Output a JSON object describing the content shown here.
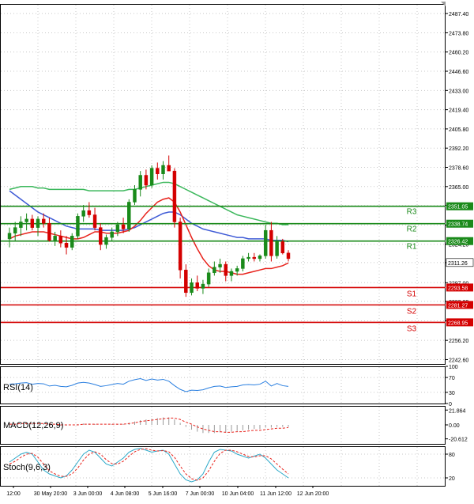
{
  "chart_data": {
    "type": "candlestick",
    "instrument_note": "",
    "main": {
      "ylim": [
        2239.5,
        2494.2
      ],
      "y_ticks": [
        2242.6,
        2256.2,
        2270.0,
        2283.8,
        2297.0,
        2311.2,
        2324.2,
        2337.8,
        2351.6,
        2365.0,
        2378.6,
        2392.2,
        2405.8,
        2419.4,
        2433.0,
        2446.6,
        2460.2,
        2473.8,
        2487.4
      ],
      "candles": [
        {
          "o": 2328,
          "h": 2336,
          "l": 2322,
          "c": 2332
        },
        {
          "o": 2332,
          "h": 2340,
          "l": 2326,
          "c": 2336
        },
        {
          "o": 2336,
          "h": 2344,
          "l": 2330,
          "c": 2340
        },
        {
          "o": 2340,
          "h": 2346,
          "l": 2334,
          "c": 2342
        },
        {
          "o": 2342,
          "h": 2345,
          "l": 2334,
          "c": 2336
        },
        {
          "o": 2336,
          "h": 2344,
          "l": 2330,
          "c": 2342
        },
        {
          "o": 2342,
          "h": 2346,
          "l": 2336,
          "c": 2339
        },
        {
          "o": 2339,
          "h": 2343,
          "l": 2326,
          "c": 2327
        },
        {
          "o": 2327,
          "h": 2333,
          "l": 2323,
          "c": 2330
        },
        {
          "o": 2330,
          "h": 2334,
          "l": 2322,
          "c": 2325
        },
        {
          "o": 2325,
          "h": 2330,
          "l": 2317,
          "c": 2322
        },
        {
          "o": 2322,
          "h": 2332,
          "l": 2320,
          "c": 2330
        },
        {
          "o": 2330,
          "h": 2346,
          "l": 2328,
          "c": 2344
        },
        {
          "o": 2344,
          "h": 2352,
          "l": 2340,
          "c": 2348
        },
        {
          "o": 2348,
          "h": 2354,
          "l": 2343,
          "c": 2345
        },
        {
          "o": 2345,
          "h": 2350,
          "l": 2334,
          "c": 2336
        },
        {
          "o": 2336,
          "h": 2339,
          "l": 2320,
          "c": 2324
        },
        {
          "o": 2324,
          "h": 2331,
          "l": 2321,
          "c": 2329
        },
        {
          "o": 2329,
          "h": 2336,
          "l": 2326,
          "c": 2333
        },
        {
          "o": 2333,
          "h": 2340,
          "l": 2330,
          "c": 2338
        },
        {
          "o": 2338,
          "h": 2343,
          "l": 2332,
          "c": 2335
        },
        {
          "o": 2335,
          "h": 2356,
          "l": 2333,
          "c": 2354
        },
        {
          "o": 2354,
          "h": 2366,
          "l": 2352,
          "c": 2363
        },
        {
          "o": 2363,
          "h": 2376,
          "l": 2358,
          "c": 2373
        },
        {
          "o": 2373,
          "h": 2377,
          "l": 2363,
          "c": 2366
        },
        {
          "o": 2366,
          "h": 2380,
          "l": 2364,
          "c": 2378
        },
        {
          "o": 2378,
          "h": 2382,
          "l": 2370,
          "c": 2374
        },
        {
          "o": 2374,
          "h": 2383,
          "l": 2370,
          "c": 2380
        },
        {
          "o": 2380,
          "h": 2387,
          "l": 2376,
          "c": 2376
        },
        {
          "o": 2376,
          "h": 2378,
          "l": 2336,
          "c": 2340
        },
        {
          "o": 2340,
          "h": 2343,
          "l": 2300,
          "c": 2306
        },
        {
          "o": 2306,
          "h": 2310,
          "l": 2287,
          "c": 2290
        },
        {
          "o": 2290,
          "h": 2300,
          "l": 2288,
          "c": 2297
        },
        {
          "o": 2297,
          "h": 2302,
          "l": 2291,
          "c": 2293
        },
        {
          "o": 2293,
          "h": 2299,
          "l": 2289,
          "c": 2296
        },
        {
          "o": 2296,
          "h": 2307,
          "l": 2294,
          "c": 2304
        },
        {
          "o": 2304,
          "h": 2312,
          "l": 2302,
          "c": 2308
        },
        {
          "o": 2308,
          "h": 2314,
          "l": 2304,
          "c": 2310
        },
        {
          "o": 2310,
          "h": 2312,
          "l": 2298,
          "c": 2302
        },
        {
          "o": 2302,
          "h": 2307,
          "l": 2298,
          "c": 2305
        },
        {
          "o": 2305,
          "h": 2309,
          "l": 2302,
          "c": 2307
        },
        {
          "o": 2307,
          "h": 2316,
          "l": 2305,
          "c": 2314
        },
        {
          "o": 2314,
          "h": 2318,
          "l": 2312,
          "c": 2315
        },
        {
          "o": 2315,
          "h": 2318,
          "l": 2312,
          "c": 2314
        },
        {
          "o": 2314,
          "h": 2317,
          "l": 2312,
          "c": 2316
        },
        {
          "o": 2316,
          "h": 2338,
          "l": 2314,
          "c": 2334
        },
        {
          "o": 2334,
          "h": 2340,
          "l": 2312,
          "c": 2316
        },
        {
          "o": 2316,
          "h": 2330,
          "l": 2314,
          "c": 2326
        },
        {
          "o": 2326,
          "h": 2328,
          "l": 2317,
          "c": 2318
        },
        {
          "o": 2318,
          "h": 2320,
          "l": 2312,
          "c": 2314
        }
      ],
      "ma_red": [
        2328,
        2330,
        2331,
        2332,
        2333,
        2333,
        2333,
        2332,
        2331,
        2330,
        2329,
        2328,
        2328,
        2329,
        2331,
        2333,
        2333,
        2332,
        2332,
        2332,
        2333,
        2334,
        2337,
        2341,
        2346,
        2350,
        2354,
        2356,
        2357,
        2354,
        2347,
        2338,
        2329,
        2321,
        2314,
        2309,
        2306,
        2305,
        2305,
        2304,
        2303,
        2303,
        2304,
        2305,
        2306,
        2307,
        2307,
        2308,
        2309,
        2311
      ],
      "ma_blue": [
        2362,
        2359,
        2356,
        2353,
        2350,
        2347,
        2345,
        2343,
        2341,
        2339,
        2337,
        2336,
        2335,
        2335,
        2335,
        2335,
        2334,
        2334,
        2334,
        2334,
        2334,
        2335,
        2336,
        2338,
        2340,
        2342,
        2344,
        2346,
        2347,
        2347,
        2345,
        2342,
        2339,
        2337,
        2335,
        2334,
        2333,
        2332,
        2331,
        2330,
        2329,
        2329,
        2328,
        2328,
        2328,
        2328,
        2327,
        2327,
        2327,
        2326
      ],
      "ma_green": [
        2363,
        2364,
        2365,
        2365,
        2365,
        2364,
        2364,
        2363,
        2363,
        2363,
        2363,
        2363,
        2363,
        2363,
        2362,
        2362,
        2362,
        2362,
        2362,
        2362,
        2362,
        2363,
        2363,
        2364,
        2365,
        2366,
        2367,
        2368,
        2368,
        2367,
        2365,
        2363,
        2361,
        2359,
        2357,
        2355,
        2353,
        2351,
        2349,
        2347,
        2345,
        2344,
        2343,
        2342,
        2341,
        2340,
        2339,
        2339,
        2338,
        2338
      ],
      "levels": [
        {
          "name": "R3",
          "value": 2351.05,
          "label": "2351.05",
          "color": "#1a8a1a"
        },
        {
          "name": "R2",
          "value": 2338.74,
          "label": "2338.74",
          "color": "#1a8a1a"
        },
        {
          "name": "R1",
          "value": 2326.42,
          "label": "2326.42",
          "color": "#1a8a1a"
        },
        {
          "name": "S1",
          "value": 2293.58,
          "label": "2293.58",
          "color": "#d40000"
        },
        {
          "name": "S2",
          "value": 2281.27,
          "label": "2281.27",
          "color": "#d40000"
        },
        {
          "name": "S3",
          "value": 2268.95,
          "label": "2268.95",
          "color": "#d40000"
        }
      ],
      "current_price": {
        "value": 2311.26,
        "label": "2311.26"
      }
    },
    "rsi": {
      "label": "RSI(14)",
      "ylim": [
        0,
        100
      ],
      "ticks": [
        100,
        70,
        30,
        0
      ],
      "values": [
        52,
        53,
        55,
        56,
        52,
        54,
        53,
        47,
        49,
        46,
        45,
        49,
        55,
        57,
        55,
        51,
        46,
        48,
        51,
        54,
        52,
        60,
        64,
        67,
        62,
        66,
        63,
        65,
        60,
        48,
        38,
        32,
        36,
        35,
        37,
        42,
        46,
        47,
        43,
        45,
        46,
        50,
        51,
        50,
        52,
        60,
        47,
        54,
        48,
        46
      ]
    },
    "macd": {
      "label": "MACD(12,26,9)",
      "ylim": [
        -28,
        28
      ],
      "ticks": [
        "21.864",
        "0.00",
        "-20.612"
      ],
      "hist": [
        2,
        2,
        3,
        3,
        2,
        2,
        2,
        1,
        0,
        -1,
        -1,
        0,
        1,
        2,
        2,
        1,
        0,
        0,
        1,
        1,
        1,
        3,
        5,
        7,
        8,
        9,
        10,
        11,
        11,
        8,
        3,
        -3,
        -7,
        -10,
        -12,
        -12,
        -12,
        -11,
        -11,
        -10,
        -9,
        -8,
        -7,
        -6,
        -6,
        -4,
        -4,
        -3,
        -3,
        -3
      ],
      "signal": [
        1,
        1,
        2,
        2,
        2,
        2,
        2,
        1,
        1,
        0,
        0,
        0,
        0,
        1,
        1,
        1,
        1,
        1,
        1,
        1,
        1,
        2,
        3,
        5,
        6,
        7,
        8,
        9,
        10,
        10,
        8,
        4,
        1,
        -3,
        -6,
        -8,
        -10,
        -10,
        -11,
        -11,
        -10,
        -10,
        -9,
        -8,
        -8,
        -7,
        -6,
        -5,
        -5,
        -4
      ]
    },
    "stoch": {
      "label": "Stoch(9,6,3)",
      "ylim": [
        0,
        100
      ],
      "ticks": [
        "80",
        "20"
      ],
      "k": [
        60,
        70,
        80,
        85,
        80,
        60,
        40,
        30,
        25,
        20,
        25,
        40,
        60,
        80,
        90,
        85,
        70,
        55,
        50,
        60,
        70,
        85,
        92,
        95,
        90,
        85,
        88,
        90,
        80,
        55,
        30,
        15,
        10,
        15,
        30,
        60,
        85,
        92,
        90,
        88,
        80,
        75,
        70,
        75,
        80,
        70,
        55,
        40,
        30,
        20
      ],
      "d": [
        55,
        62,
        72,
        80,
        82,
        72,
        55,
        38,
        30,
        24,
        24,
        30,
        45,
        65,
        80,
        86,
        80,
        66,
        56,
        55,
        62,
        75,
        86,
        92,
        94,
        90,
        88,
        89,
        86,
        72,
        50,
        30,
        18,
        14,
        20,
        38,
        62,
        82,
        90,
        90,
        86,
        80,
        74,
        73,
        76,
        76,
        68,
        55,
        42,
        30
      ]
    },
    "x_labels": [
      "12:00",
      "30 May 20:00",
      "3 Jun 00:00",
      "4 Jun 08:00",
      "5 Jun 16:00",
      "7 Jun 00:00",
      "10 Jun 04:00",
      "11 Jun 12:00",
      "12 Jun 20:00"
    ],
    "colors": {
      "bull": "#1a8a1a",
      "bear": "#d40000",
      "ma_red": "#e8231c",
      "ma_blue": "#3f5bd6",
      "ma_green": "#3cb85c",
      "rsi_line": "#2a7fe0",
      "macd_hist": "#9a9a9a",
      "macd_signal": "#e8231c",
      "stoch_k": "#2ba8c8",
      "stoch_d": "#e8231c",
      "grid": "#c8c8c8"
    }
  }
}
